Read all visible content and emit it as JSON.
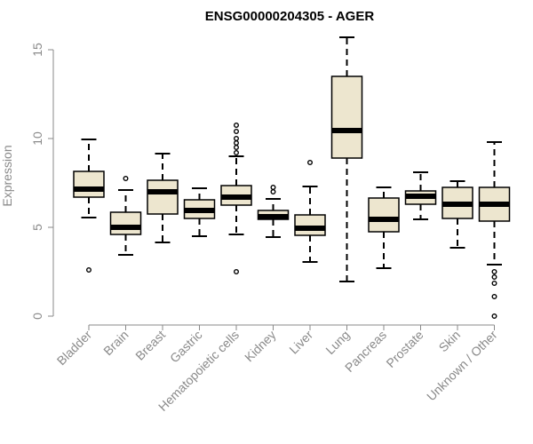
{
  "chart_data": {
    "type": "box",
    "title": "ENSG00000204305 - AGER",
    "xlabel": "",
    "ylabel": "Expression",
    "ylim": [
      0,
      15.8
    ],
    "yticks": [
      0,
      5,
      10,
      15
    ],
    "grid": false,
    "box_fill": "#ede6cf",
    "box_stroke": "#000000",
    "axis_color": "#8a8a8a",
    "categories": [
      "Bladder",
      "Brain",
      "Breast",
      "Gastric",
      "Hematopoietic cells",
      "Kidney",
      "Liver",
      "Lung",
      "Pancreas",
      "Prostate",
      "Skin",
      "Unknown / Other"
    ],
    "boxes": [
      {
        "q1": 6.7,
        "median": 7.15,
        "q3": 8.15,
        "whisker_low": 5.55,
        "whisker_high": 9.95,
        "outliers": [
          2.6
        ]
      },
      {
        "q1": 4.6,
        "median": 5.0,
        "q3": 5.85,
        "whisker_low": 3.45,
        "whisker_high": 7.1,
        "outliers": [
          7.75
        ]
      },
      {
        "q1": 5.75,
        "median": 7.0,
        "q3": 7.65,
        "whisker_low": 4.15,
        "whisker_high": 9.15,
        "outliers": []
      },
      {
        "q1": 5.5,
        "median": 5.95,
        "q3": 6.55,
        "whisker_low": 4.5,
        "whisker_high": 7.2,
        "outliers": []
      },
      {
        "q1": 6.25,
        "median": 6.7,
        "q3": 7.35,
        "whisker_low": 4.6,
        "whisker_high": 9.0,
        "outliers": [
          2.5,
          9.2,
          9.5,
          9.75,
          10.0,
          10.4,
          10.75
        ]
      },
      {
        "q1": 5.45,
        "median": 5.6,
        "q3": 5.95,
        "whisker_low": 4.45,
        "whisker_high": 6.6,
        "outliers": [
          7.0,
          7.25
        ]
      },
      {
        "q1": 4.55,
        "median": 4.95,
        "q3": 5.7,
        "whisker_low": 3.05,
        "whisker_high": 7.3,
        "outliers": [
          8.65
        ]
      },
      {
        "q1": 8.9,
        "median": 10.45,
        "q3": 13.5,
        "whisker_low": 1.95,
        "whisker_high": 15.7,
        "outliers": []
      },
      {
        "q1": 4.75,
        "median": 5.45,
        "q3": 6.65,
        "whisker_low": 2.7,
        "whisker_high": 7.25,
        "outliers": []
      },
      {
        "q1": 6.3,
        "median": 6.75,
        "q3": 7.05,
        "whisker_low": 5.45,
        "whisker_high": 8.1,
        "outliers": []
      },
      {
        "q1": 5.5,
        "median": 6.3,
        "q3": 7.25,
        "whisker_low": 3.85,
        "whisker_high": 7.6,
        "outliers": []
      },
      {
        "q1": 5.35,
        "median": 6.3,
        "q3": 7.25,
        "whisker_low": 2.9,
        "whisker_high": 9.8,
        "outliers": [
          2.5,
          2.2,
          1.85,
          1.1,
          0.0
        ]
      }
    ]
  }
}
